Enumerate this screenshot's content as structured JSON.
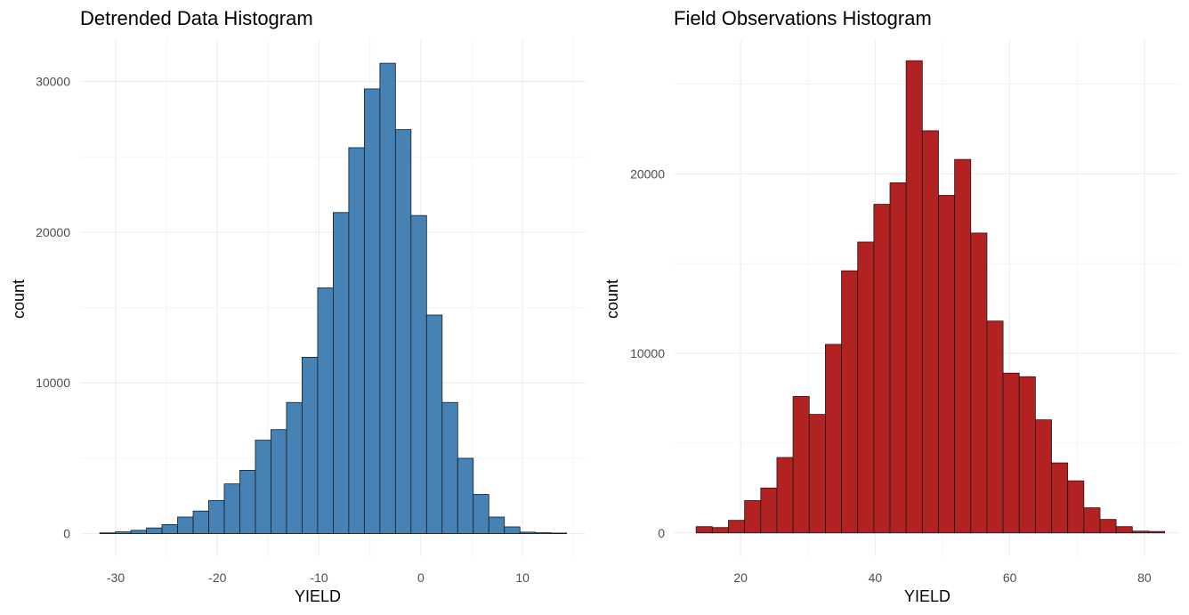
{
  "chart_data": [
    {
      "id": "left",
      "type": "bar",
      "title": "Detrended Data Histogram",
      "xlabel": "YIELD",
      "ylabel": "count",
      "xlim": [
        -33.5,
        16.2
      ],
      "ylim": [
        -1500,
        32800
      ],
      "xticks": [
        -30,
        -20,
        -10,
        0,
        10
      ],
      "xtick_labels": [
        "-30",
        "-20",
        "-10",
        "0",
        "10"
      ],
      "yticks": [
        0,
        10000,
        20000,
        30000
      ],
      "ytick_labels": [
        "0",
        "10000",
        "20000",
        "30000"
      ],
      "grid": true,
      "fill_color": "#4682b4",
      "bin_width": 1.53,
      "bin_centers": [
        -30.8,
        -29.27,
        -27.74,
        -26.21,
        -24.68,
        -23.15,
        -21.62,
        -20.09,
        -18.56,
        -17.03,
        -15.5,
        -13.97,
        -12.44,
        -10.91,
        -9.38,
        -7.85,
        -6.32,
        -4.79,
        -3.26,
        -1.73,
        -0.2,
        1.33,
        2.86,
        4.39,
        5.92,
        7.45,
        8.98,
        10.51,
        12.04,
        13.57
      ],
      "values": [
        50,
        120,
        220,
        380,
        600,
        1100,
        1500,
        2200,
        3300,
        4200,
        6200,
        6900,
        8700,
        11700,
        16300,
        21300,
        25600,
        29500,
        31200,
        26800,
        21100,
        14500,
        8700,
        5000,
        2600,
        1100,
        450,
        100,
        60,
        40
      ]
    },
    {
      "id": "right",
      "type": "bar",
      "title": "Field Observations Histogram",
      "xlabel": "YIELD",
      "ylabel": "count",
      "xlim": [
        10.2,
        85.3
      ],
      "ylim": [
        -1300,
        27500
      ],
      "xticks": [
        20,
        40,
        60,
        80
      ],
      "xtick_labels": [
        "20",
        "40",
        "60",
        "80"
      ],
      "yticks": [
        0,
        10000,
        20000
      ],
      "ytick_labels": [
        "0",
        "10000",
        "20000"
      ],
      "grid": true,
      "fill_color": "#b22222",
      "bin_width": 2.4,
      "bin_centers": [
        14.6,
        17.0,
        19.4,
        21.8,
        24.2,
        26.6,
        29.0,
        31.4,
        33.8,
        36.2,
        38.6,
        41.0,
        43.4,
        45.8,
        48.2,
        50.6,
        53.0,
        55.4,
        57.8,
        60.2,
        62.6,
        65.0,
        67.4,
        69.8,
        72.2,
        74.6,
        77.0,
        79.4,
        81.8
      ],
      "values": [
        350,
        300,
        700,
        1800,
        2500,
        4200,
        7600,
        6600,
        10500,
        14600,
        16200,
        18300,
        19500,
        26300,
        22400,
        18800,
        20800,
        16700,
        11800,
        8900,
        8700,
        6300,
        3900,
        2900,
        1400,
        750,
        350,
        100,
        80
      ]
    }
  ]
}
